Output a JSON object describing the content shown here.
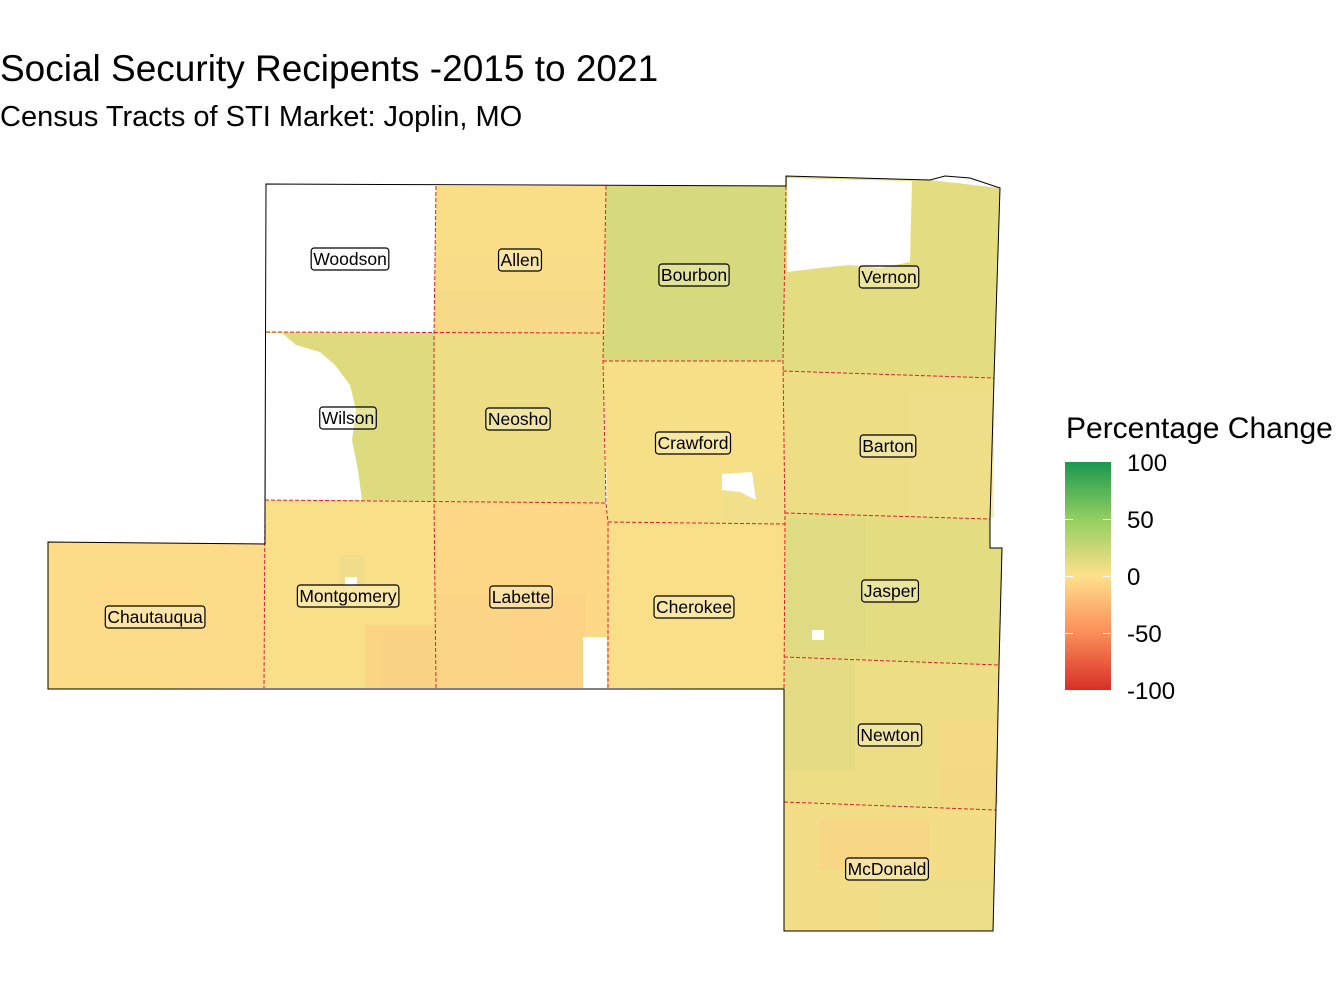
{
  "title": "Social Security Recipents -2015 to 2021",
  "subtitle": "Census Tracts of STI Market: Joplin, MO",
  "colors": {
    "high": "#1a9850",
    "mid_high": "#91cf60",
    "mid": "#fee08b",
    "mid_low": "#fc8d59",
    "low": "#d73027",
    "no_data": "#ffffff",
    "county_border": "#e0202a"
  },
  "legend": {
    "title": "Percentage Change",
    "ticks": [
      "100",
      "50",
      "0",
      "-50",
      "-100"
    ],
    "range": [
      -100,
      100
    ]
  },
  "counties": [
    {
      "name": "Woodson",
      "label": "Woodson",
      "change_pct": null
    },
    {
      "name": "Allen",
      "label": "Allen",
      "change_pct": 5
    },
    {
      "name": "Bourbon",
      "label": "Bourbon",
      "change_pct": 18
    },
    {
      "name": "Vernon",
      "label": "Vernon",
      "change_pct": 12
    },
    {
      "name": "Wilson",
      "label": "Wilson",
      "change_pct": 15
    },
    {
      "name": "Neosho",
      "label": "Neosho",
      "change_pct": 8
    },
    {
      "name": "Crawford",
      "label": "Crawford",
      "change_pct": 3
    },
    {
      "name": "Barton",
      "label": "Barton",
      "change_pct": 8
    },
    {
      "name": "Chautauqua",
      "label": "Chautauqua",
      "change_pct": -3
    },
    {
      "name": "Montgomery",
      "label": "Montgomery",
      "change_pct": 2
    },
    {
      "name": "Labette",
      "label": "Labette",
      "change_pct": -5
    },
    {
      "name": "Cherokee",
      "label": "Cherokee",
      "change_pct": 2
    },
    {
      "name": "Jasper",
      "label": "Jasper",
      "change_pct": 12
    },
    {
      "name": "Newton",
      "label": "Newton",
      "change_pct": 8
    },
    {
      "name": "McDonald",
      "label": "McDonald",
      "change_pct": 5
    }
  ]
}
